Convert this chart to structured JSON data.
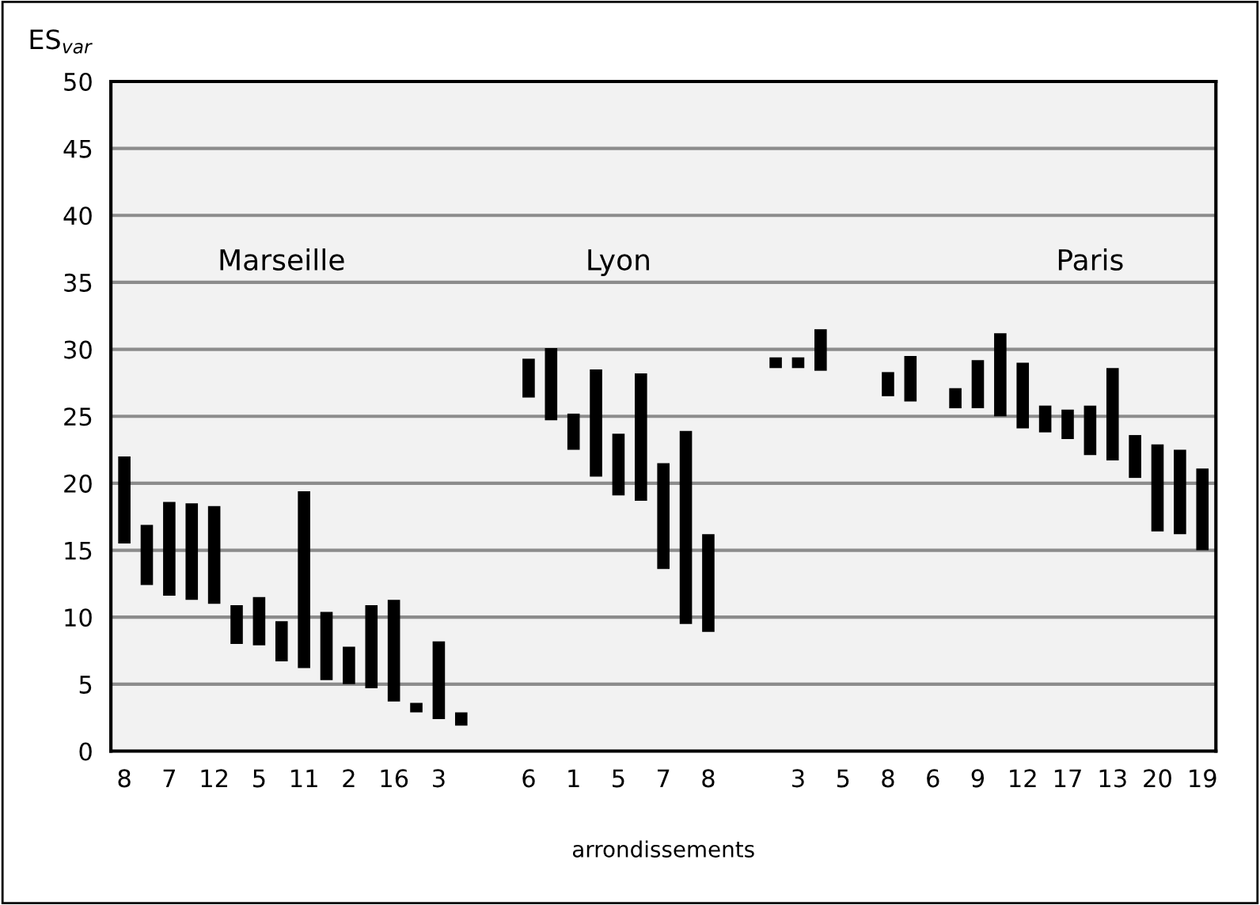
{
  "chart_data": {
    "type": "bar",
    "ylabel": "ES$_{var}$",
    "xlabel": "arrondissements",
    "annotations": [
      "Marseille",
      "Lyon",
      "Paris"
    ],
    "categories": [
      "8",
      null,
      "7",
      null,
      "12",
      null,
      "5",
      null,
      "11",
      null,
      "2",
      null,
      "16",
      null,
      "3",
      null,
      null,
      null,
      "6",
      null,
      "1",
      null,
      "5",
      null,
      "7",
      null,
      "8",
      null,
      null,
      null,
      "3",
      null,
      "5",
      null,
      "8",
      null,
      "6",
      null,
      "9",
      null,
      "12",
      null,
      "17",
      null,
      "13",
      null,
      "20",
      null,
      "19"
    ],
    "base": [
      15.5,
      12.4,
      11.6,
      11.3,
      11.0,
      8.0,
      7.9,
      6.7,
      6.2,
      5.3,
      5.0,
      4.7,
      3.7,
      2.9,
      2.4,
      1.9,
      null,
      null,
      26.4,
      24.7,
      22.5,
      20.5,
      19.1,
      18.7,
      13.6,
      9.5,
      8.9,
      null,
      null,
      28.6,
      28.6,
      28.4,
      null,
      null,
      26.5,
      26.1,
      null,
      25.6,
      25.6,
      25.0,
      24.1,
      23.8,
      23.3,
      22.1,
      21.7,
      20.4,
      16.4,
      16.2,
      15.0
    ],
    "values": [
      6.5,
      4.5,
      7.0,
      7.2,
      7.3,
      2.9,
      3.6,
      3.0,
      13.2,
      5.1,
      2.8,
      6.2,
      7.6,
      0.7,
      5.8,
      1.0,
      null,
      null,
      2.9,
      5.4,
      2.7,
      8.0,
      4.6,
      9.5,
      7.9,
      14.4,
      7.3,
      null,
      null,
      0.8,
      0.8,
      3.1,
      null,
      null,
      1.8,
      3.4,
      null,
      1.5,
      3.6,
      6.2,
      4.9,
      2.0,
      2.2,
      3.7,
      6.9,
      3.2,
      6.5,
      6.3,
      6.1
    ],
    "color": "#000000",
    "ylim": [
      0,
      50
    ],
    "yticks": [
      0,
      5,
      10,
      15,
      20,
      25,
      30,
      35,
      40,
      45,
      50
    ],
    "grid": "y"
  }
}
